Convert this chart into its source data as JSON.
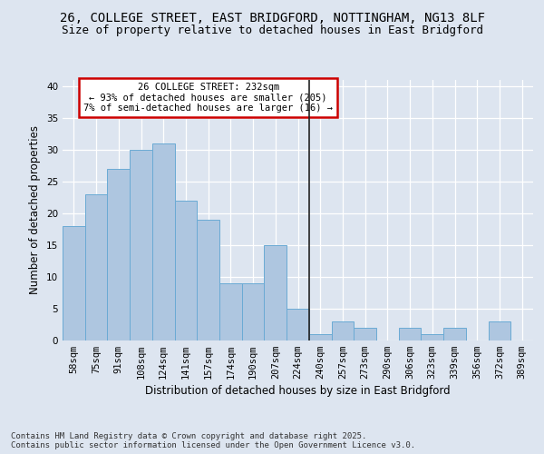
{
  "title_line1": "26, COLLEGE STREET, EAST BRIDGFORD, NOTTINGHAM, NG13 8LF",
  "title_line2": "Size of property relative to detached houses in East Bridgford",
  "xlabel": "Distribution of detached houses by size in East Bridgford",
  "ylabel": "Number of detached properties",
  "categories": [
    "58sqm",
    "75sqm",
    "91sqm",
    "108sqm",
    "124sqm",
    "141sqm",
    "157sqm",
    "174sqm",
    "190sqm",
    "207sqm",
    "224sqm",
    "240sqm",
    "257sqm",
    "273sqm",
    "290sqm",
    "306sqm",
    "323sqm",
    "339sqm",
    "356sqm",
    "372sqm",
    "389sqm"
  ],
  "values": [
    18,
    23,
    27,
    30,
    31,
    22,
    19,
    9,
    9,
    15,
    5,
    1,
    3,
    2,
    0,
    2,
    1,
    2,
    0,
    3,
    0
  ],
  "bar_color": "#aec6e0",
  "bar_edge_color": "#6aaad4",
  "vline_x": 10.5,
  "vline_color": "#222222",
  "annotation_text": "26 COLLEGE STREET: 232sqm\n← 93% of detached houses are smaller (205)\n7% of semi-detached houses are larger (16) →",
  "annotation_box_color": "#ffffff",
  "annotation_box_edge": "#cc0000",
  "background_color": "#dde5f0",
  "ylim": [
    0,
    41
  ],
  "yticks": [
    0,
    5,
    10,
    15,
    20,
    25,
    30,
    35,
    40
  ],
  "footer_text": "Contains HM Land Registry data © Crown copyright and database right 2025.\nContains public sector information licensed under the Open Government Licence v3.0.",
  "title_fontsize": 10,
  "subtitle_fontsize": 9,
  "axis_label_fontsize": 8.5,
  "tick_fontsize": 7.5,
  "annotation_fontsize": 7.5,
  "footer_fontsize": 6.5
}
